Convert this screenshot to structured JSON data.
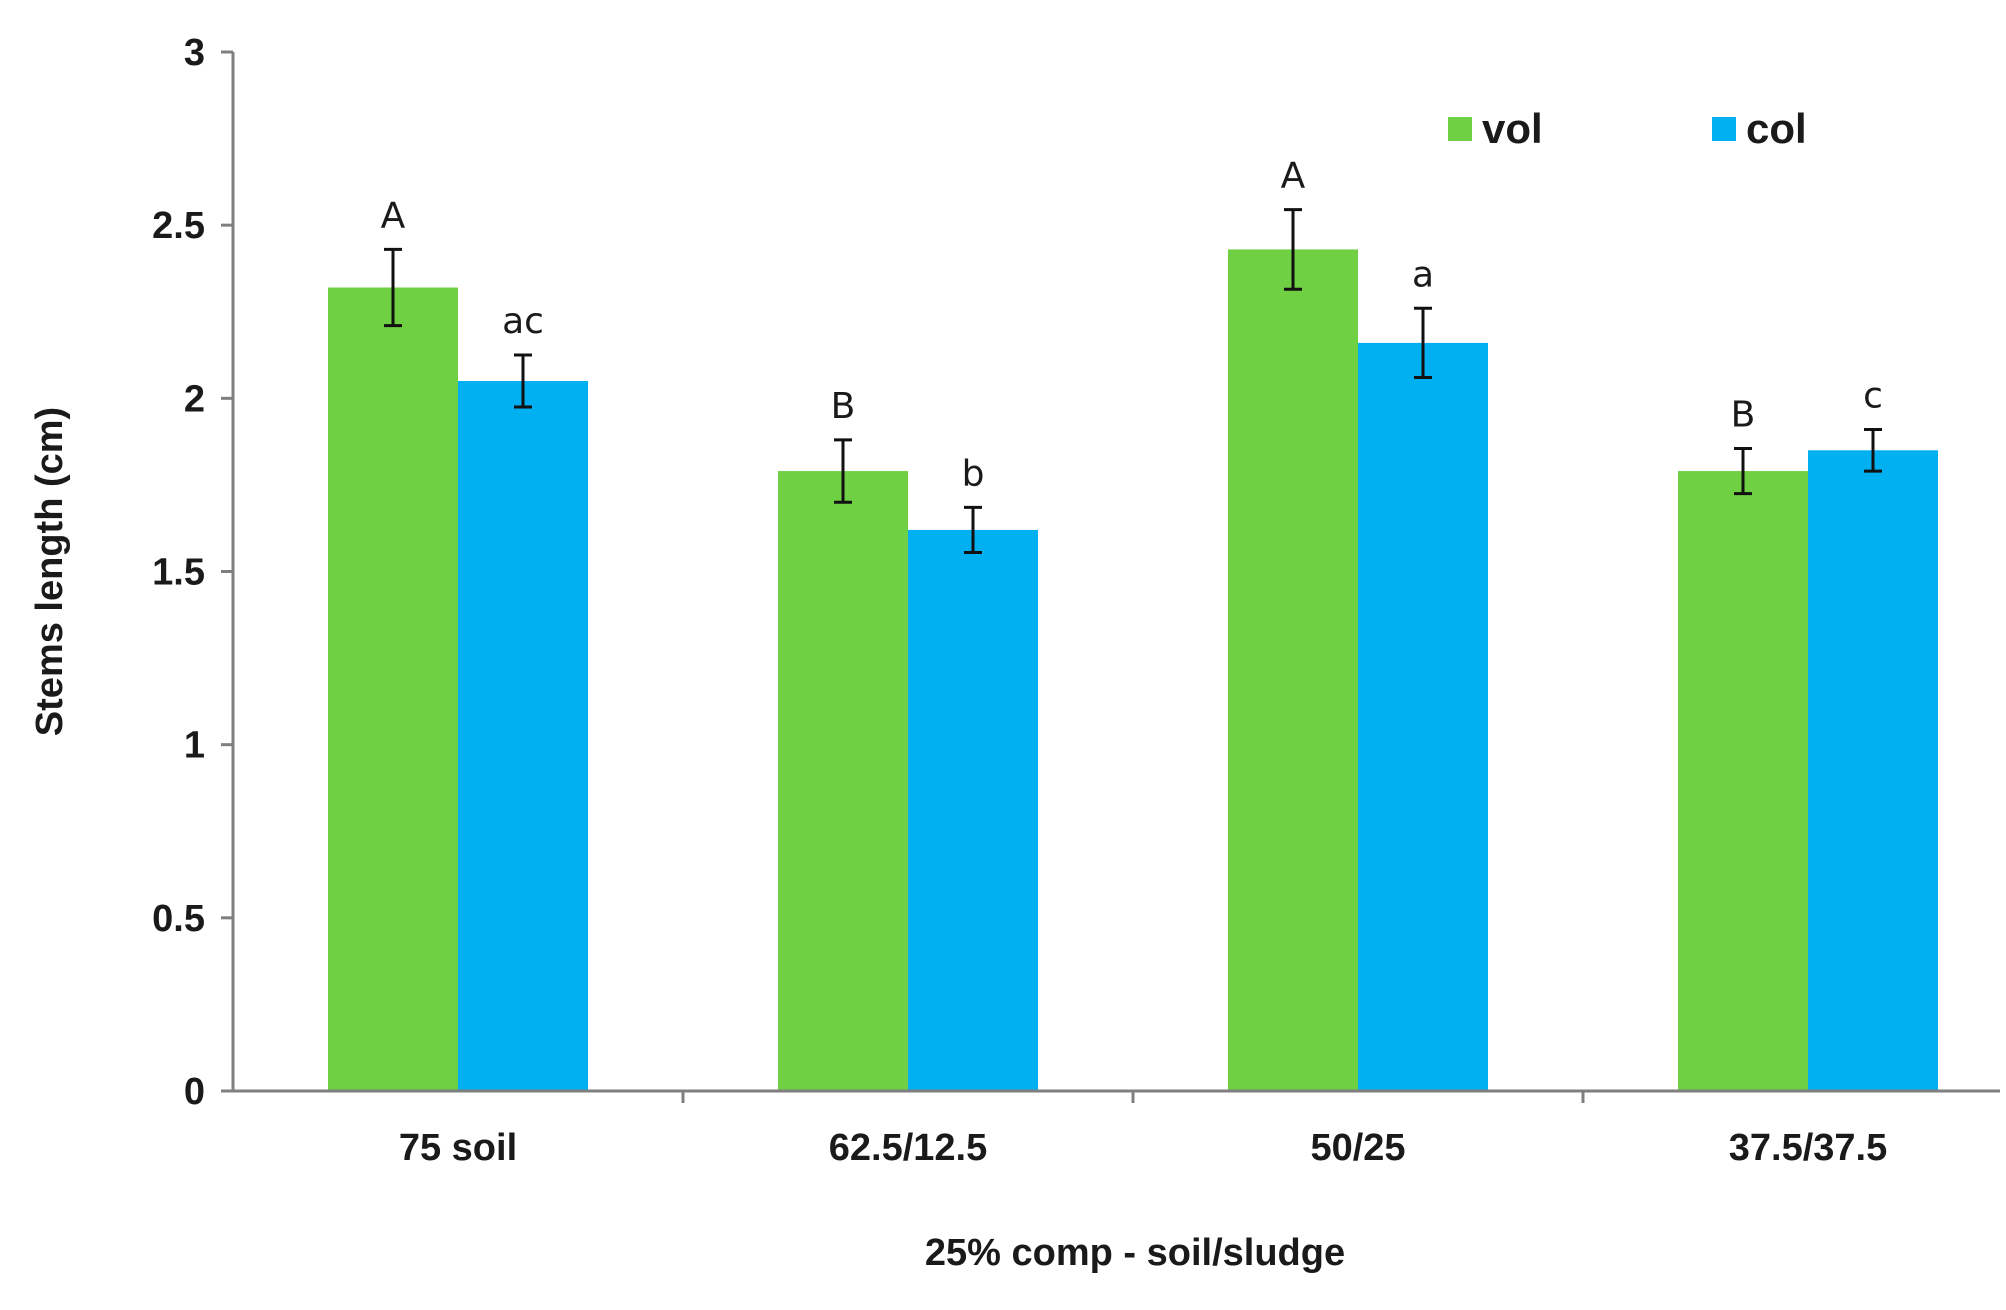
{
  "chart_data": {
    "type": "bar",
    "title": "",
    "xlabel": "25% comp - soil/sludge",
    "ylabel": "Stems length (cm)",
    "ylim": [
      0,
      3
    ],
    "yticks": [
      0,
      0.5,
      1,
      1.5,
      2,
      2.5,
      3
    ],
    "ytick_labels": [
      "0",
      "0.5",
      "1",
      "1.5",
      "2",
      "2.5",
      "3"
    ],
    "categories": [
      "75 soil",
      "62.5/12.5",
      "50/25",
      "37.5/37.5"
    ],
    "legend_position": "top-right",
    "grid": false,
    "series": [
      {
        "name": "vol",
        "color": "#70D044",
        "values": [
          2.32,
          1.79,
          2.43,
          1.79
        ],
        "errors": [
          0.11,
          0.09,
          0.115,
          0.065
        ],
        "significance": [
          "A",
          "B",
          "A",
          "B"
        ]
      },
      {
        "name": "col",
        "color": "#00B0F0",
        "values": [
          2.05,
          1.62,
          2.16,
          1.85
        ],
        "errors": [
          0.075,
          0.065,
          0.1,
          0.06
        ],
        "significance": [
          "ac",
          "b",
          "a",
          "c"
        ]
      }
    ]
  }
}
